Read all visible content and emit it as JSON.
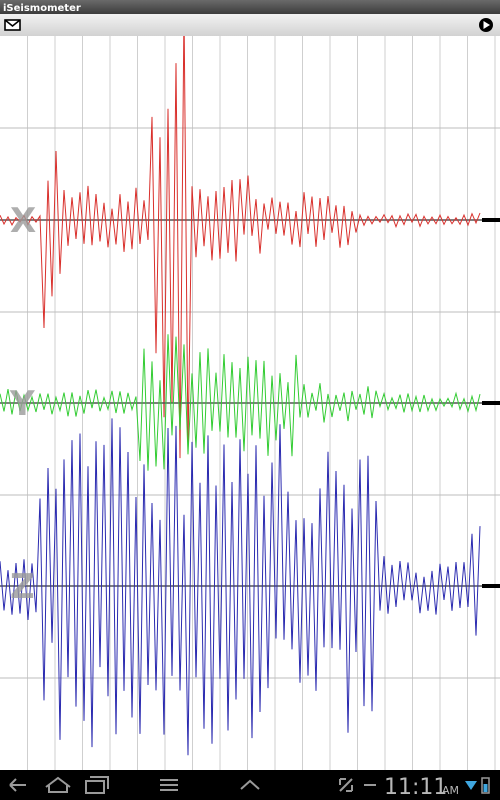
{
  "app": {
    "title": "iSeismometer"
  },
  "traces": [
    {
      "label": "X"
    },
    {
      "label": "Y"
    },
    {
      "label": "Z"
    }
  ],
  "status_bar": {
    "time": "11:11",
    "period": "AM"
  }
}
